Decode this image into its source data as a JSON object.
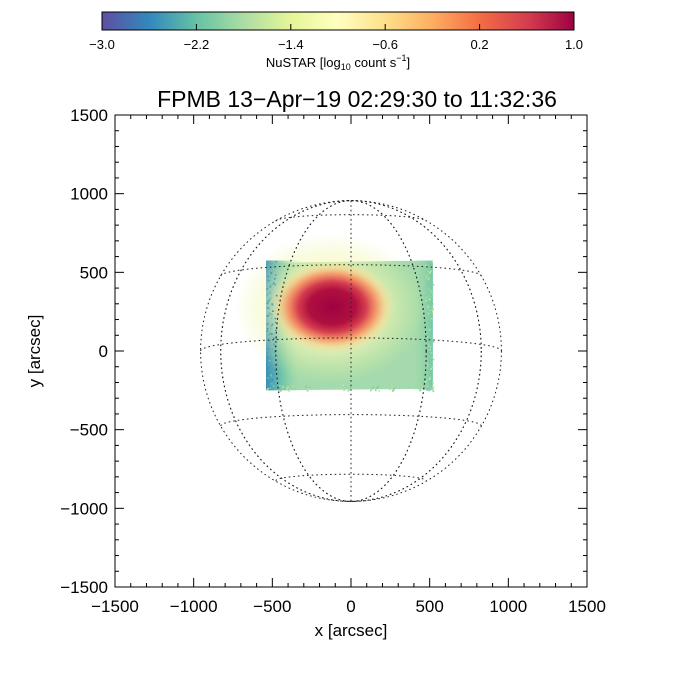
{
  "chart_data": {
    "type": "heatmap",
    "title": "FPMB 13−Apr−19 02:29:30 to 11:32:36",
    "xlabel": "x [arcsec]",
    "ylabel": "y [arcsec]",
    "xlim": [
      -1500,
      1500
    ],
    "ylim": [
      -1500,
      1500
    ],
    "xticks": [
      -1500,
      -1000,
      -500,
      0,
      500,
      1000,
      1500
    ],
    "yticks": [
      -1500,
      -1000,
      -500,
      0,
      500,
      1000,
      1500
    ],
    "xtick_labels": [
      "−1500",
      "−1000",
      "−500",
      "0",
      "500",
      "1000",
      "1500"
    ],
    "ytick_labels": [
      "−1500",
      "−1000",
      "−500",
      "0",
      "500",
      "1000",
      "1500"
    ],
    "grid": "dotted heliographic grid",
    "solar_radius_arcsec": 956,
    "colorbar": {
      "label_prefix": "NuSTAR [log",
      "label_sub": "10",
      "label_mid": " count s",
      "label_sup": "−1",
      "label_suffix": "]",
      "range": [
        -3.0,
        1.0
      ],
      "ticks": [
        -3.0,
        -2.2,
        -1.4,
        -0.6,
        0.2,
        1.0
      ],
      "tick_labels": [
        "−3.0",
        "−2.2",
        "−1.4",
        "−0.6",
        "0.2",
        "1.0"
      ],
      "colormap_stops": [
        "#5e4fa2",
        "#3288bd",
        "#66c2a5",
        "#abdda4",
        "#e6f598",
        "#ffffbf",
        "#fee08b",
        "#fdae61",
        "#f46d43",
        "#d53e4f",
        "#9e0142"
      ]
    },
    "emission": {
      "region": {
        "corners_arcsec": [
          [
            -540,
            560
          ],
          [
            520,
            575
          ],
          [
            520,
            -240
          ],
          [
            -540,
            -250
          ]
        ]
      },
      "background_level": -1.9,
      "left_edge_level": -2.5,
      "peak": {
        "x": -120,
        "y": 280,
        "value": 1.0
      }
    }
  }
}
